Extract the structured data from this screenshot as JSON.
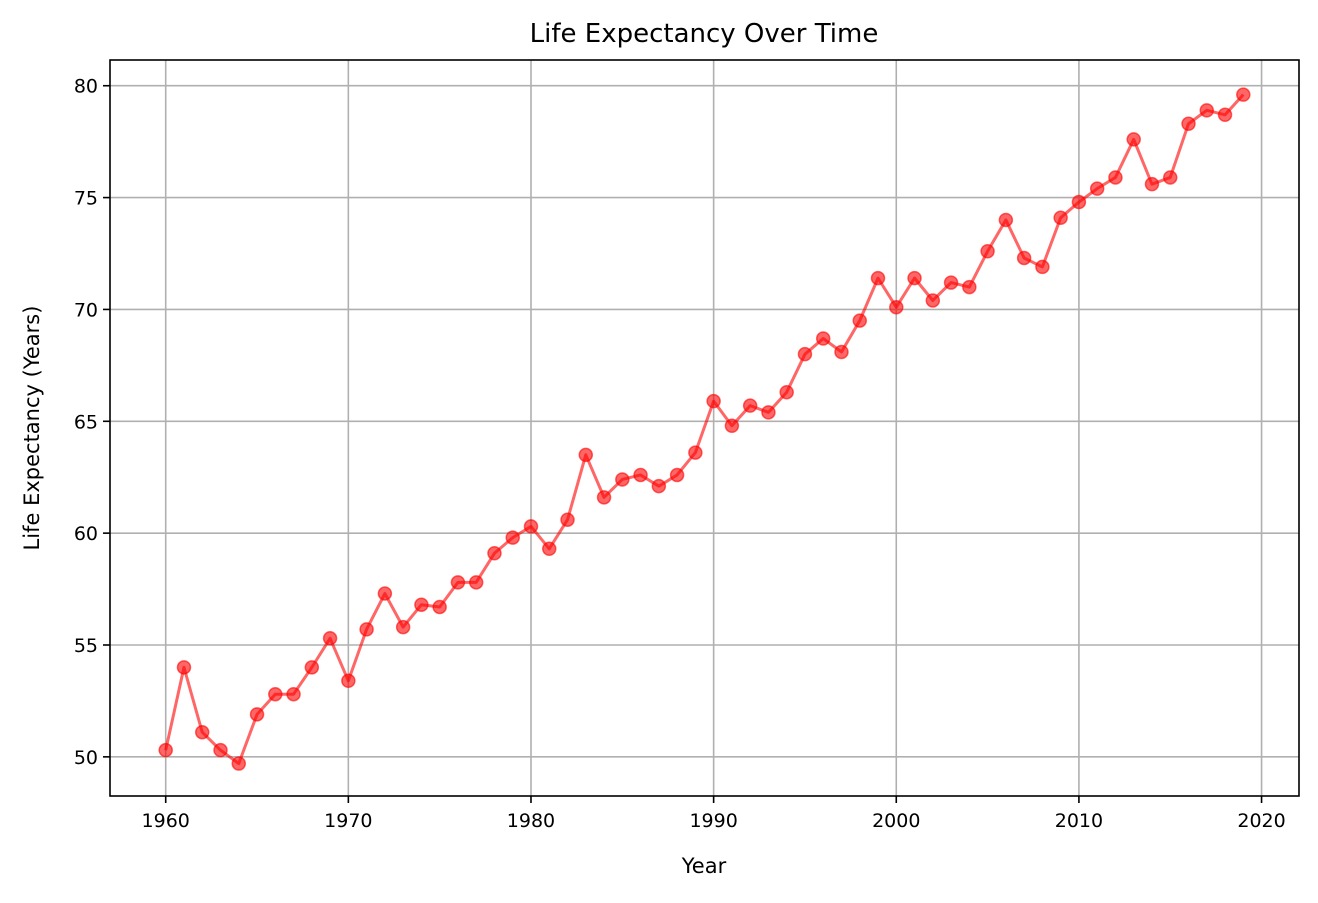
{
  "chart_data": {
    "type": "line",
    "title": "Life Expectancy Over Time",
    "xlabel": "Year",
    "ylabel": "Life Expectancy (Years)",
    "xlim": [
      1956.95,
      2022.05
    ],
    "ylim": [
      48.25,
      81.15
    ],
    "xticks": [
      1960,
      1970,
      1980,
      1990,
      2000,
      2010,
      2020
    ],
    "yticks": [
      50,
      55,
      60,
      65,
      70,
      75,
      80
    ],
    "grid": true,
    "series": [
      {
        "color": "#ff0000",
        "x": [
          1960,
          1961,
          1962,
          1963,
          1964,
          1965,
          1966,
          1967,
          1968,
          1969,
          1970,
          1971,
          1972,
          1973,
          1974,
          1975,
          1976,
          1977,
          1978,
          1979,
          1980,
          1981,
          1982,
          1983,
          1984,
          1985,
          1986,
          1987,
          1988,
          1989,
          1990,
          1991,
          1992,
          1993,
          1994,
          1995,
          1996,
          1997,
          1998,
          1999,
          2000,
          2001,
          2002,
          2003,
          2004,
          2005,
          2006,
          2007,
          2008,
          2009,
          2010,
          2011,
          2012,
          2013,
          2014,
          2015,
          2016,
          2017,
          2018,
          2019
        ],
        "y": [
          50.3,
          54.0,
          51.1,
          50.3,
          49.7,
          51.9,
          52.8,
          52.8,
          54.0,
          55.3,
          53.4,
          55.7,
          57.3,
          55.8,
          56.8,
          56.7,
          57.8,
          57.8,
          59.1,
          59.8,
          60.3,
          59.3,
          60.6,
          63.5,
          61.6,
          62.4,
          62.6,
          62.1,
          62.6,
          63.6,
          65.9,
          64.8,
          65.7,
          65.4,
          66.3,
          68.0,
          68.7,
          68.1,
          69.5,
          71.4,
          70.1,
          71.4,
          70.4,
          71.2,
          71.0,
          72.6,
          74.0,
          72.3,
          71.9,
          74.1,
          74.8,
          75.4,
          75.9,
          77.6,
          75.6,
          75.9,
          78.3,
          78.9,
          78.7,
          79.6
        ]
      }
    ]
  }
}
